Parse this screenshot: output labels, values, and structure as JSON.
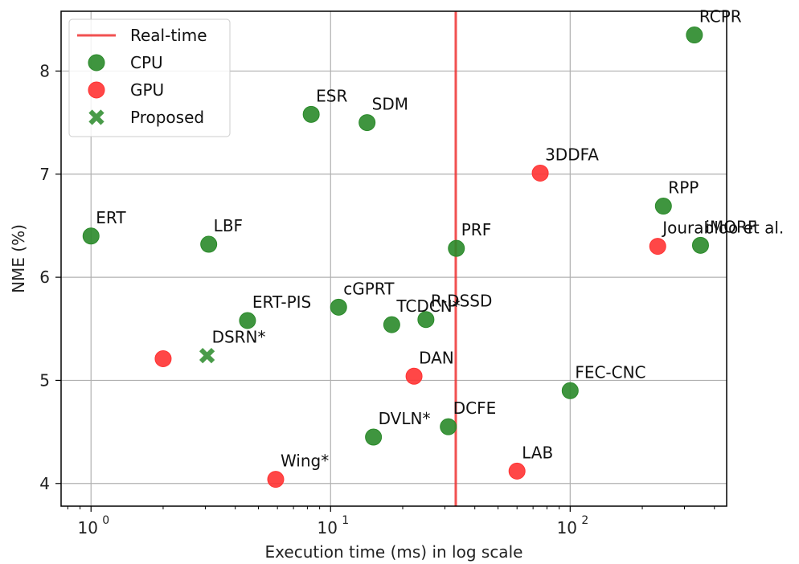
{
  "chart_data": {
    "type": "scatter",
    "title": "",
    "xlabel": "Execution time (ms) in log scale",
    "ylabel": "NME (%)",
    "x_scale": "log",
    "xlim": [
      0.75,
      450
    ],
    "ylim": [
      3.78,
      8.58
    ],
    "grid": true,
    "legend_position": "top-left",
    "x_ticks": [
      {
        "value": 1,
        "label": "10",
        "exp": "0"
      },
      {
        "value": 10,
        "label": "10",
        "exp": "1"
      },
      {
        "value": 100,
        "label": "10",
        "exp": "2"
      }
    ],
    "y_ticks": [
      {
        "value": 4,
        "label": "4"
      },
      {
        "value": 5,
        "label": "5"
      },
      {
        "value": 6,
        "label": "6"
      },
      {
        "value": 7,
        "label": "7"
      },
      {
        "value": 8,
        "label": "8"
      }
    ],
    "realtime_x": 33.3,
    "colors": {
      "cpu": "#2a8a2a",
      "gpu": "#ff3333",
      "proposed": "#2a8a2a",
      "realtime": "#ee3333"
    },
    "legend": [
      {
        "key": "realtime",
        "label": "Real-time",
        "marker": "line"
      },
      {
        "key": "cpu",
        "label": "CPU",
        "marker": "circle"
      },
      {
        "key": "gpu",
        "label": "GPU",
        "marker": "circle"
      },
      {
        "key": "proposed",
        "label": "Proposed",
        "marker": "x"
      }
    ],
    "points": [
      {
        "label": "RCPR",
        "x": 330,
        "y": 8.35,
        "group": "cpu"
      },
      {
        "label": "ESR",
        "x": 8.3,
        "y": 7.58,
        "group": "cpu"
      },
      {
        "label": "SDM",
        "x": 14.2,
        "y": 7.5,
        "group": "cpu"
      },
      {
        "label": "3DDFA",
        "x": 75,
        "y": 7.01,
        "group": "gpu"
      },
      {
        "label": "RPP",
        "x": 245,
        "y": 6.69,
        "group": "cpu"
      },
      {
        "label": "ERT",
        "x": 1.0,
        "y": 6.4,
        "group": "cpu"
      },
      {
        "label": "LBF",
        "x": 3.1,
        "y": 6.32,
        "group": "cpu"
      },
      {
        "label": "PRF",
        "x": 33.5,
        "y": 6.28,
        "group": "cpu"
      },
      {
        "label": "Jourabloo et al.",
        "x": 232,
        "y": 6.3,
        "group": "gpu"
      },
      {
        "label": "iMORF",
        "x": 350,
        "y": 6.31,
        "group": "cpu"
      },
      {
        "label": "cGPRT",
        "x": 10.8,
        "y": 5.71,
        "group": "cpu"
      },
      {
        "label": "ERT-PIS",
        "x": 4.5,
        "y": 5.58,
        "group": "cpu"
      },
      {
        "label": "TCDCN*",
        "x": 18,
        "y": 5.54,
        "group": "cpu"
      },
      {
        "label": "R-DSSD",
        "x": 25,
        "y": 5.59,
        "group": "cpu"
      },
      {
        "label": "DSRN*",
        "x": 3.05,
        "y": 5.24,
        "group": "proposed"
      },
      {
        "label": "",
        "x": 2.0,
        "y": 5.21,
        "group": "gpu"
      },
      {
        "label": "DAN",
        "x": 22.3,
        "y": 5.04,
        "group": "gpu"
      },
      {
        "label": "FEC-CNC",
        "x": 100,
        "y": 4.9,
        "group": "cpu"
      },
      {
        "label": "DVLN*",
        "x": 15.1,
        "y": 4.45,
        "group": "cpu"
      },
      {
        "label": "DCFE",
        "x": 31,
        "y": 4.55,
        "group": "cpu"
      },
      {
        "label": "LAB",
        "x": 60,
        "y": 4.12,
        "group": "gpu"
      },
      {
        "label": "Wing*",
        "x": 5.9,
        "y": 4.04,
        "group": "gpu"
      }
    ]
  }
}
